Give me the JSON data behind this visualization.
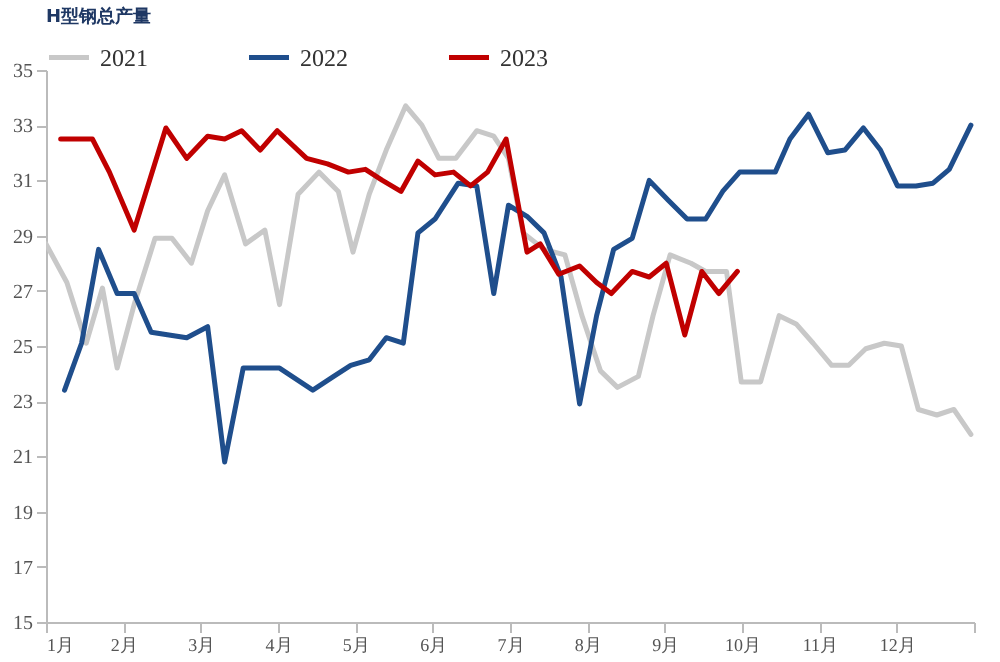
{
  "chart_data": {
    "type": "line",
    "title": "H型钢总产量",
    "xlim": [
      1,
      13
    ],
    "ylim": [
      15,
      35
    ],
    "xticks": [
      {
        "value": 1,
        "label": "1月"
      },
      {
        "value": 2,
        "label": "2月"
      },
      {
        "value": 3,
        "label": "3月"
      },
      {
        "value": 4,
        "label": "4月"
      },
      {
        "value": 5,
        "label": "5月"
      },
      {
        "value": 6,
        "label": "6月"
      },
      {
        "value": 7,
        "label": "7月"
      },
      {
        "value": 8,
        "label": "8月"
      },
      {
        "value": 9,
        "label": "9月"
      },
      {
        "value": 10,
        "label": "10月"
      },
      {
        "value": 11,
        "label": "11月"
      },
      {
        "value": 12,
        "label": "12月"
      },
      {
        "value": 13,
        "label": null
      }
    ],
    "yticks": [
      15,
      17,
      19,
      21,
      23,
      25,
      27,
      29,
      31,
      33,
      35
    ],
    "grid": false,
    "legend": "top",
    "marker": "none",
    "line_style": "solid",
    "series": [
      {
        "name": "2021",
        "color": "#c8c8c8",
        "x": [
          1.0,
          1.27,
          1.52,
          1.73,
          1.92,
          2.14,
          2.41,
          2.63,
          2.88,
          3.09,
          3.31,
          3.58,
          3.83,
          4.02,
          4.26,
          4.53,
          4.78,
          4.97,
          5.18,
          5.4,
          5.65,
          5.86,
          6.08,
          6.3,
          6.57,
          6.79,
          6.98,
          7.17,
          7.44,
          7.71,
          7.93,
          8.17,
          8.39,
          8.66,
          8.85,
          9.07,
          9.34,
          9.53,
          9.8,
          9.99,
          10.24,
          10.48,
          10.7,
          10.92,
          11.16,
          11.38,
          11.6,
          11.84,
          12.06,
          12.28,
          12.52,
          12.74,
          12.96
        ],
        "values": [
          28.7,
          27.3,
          25.1,
          27.1,
          24.2,
          26.5,
          28.9,
          28.9,
          28.0,
          29.9,
          31.2,
          28.7,
          29.2,
          26.5,
          30.5,
          31.3,
          30.6,
          28.4,
          30.5,
          32.1,
          33.7,
          33.0,
          31.8,
          31.8,
          32.8,
          32.6,
          31.8,
          29.1,
          28.5,
          28.3,
          26.1,
          24.1,
          23.5,
          23.9,
          26.1,
          28.3,
          28.0,
          27.7,
          27.7,
          23.7,
          23.7,
          26.1,
          25.8,
          25.1,
          24.3,
          24.3,
          24.9,
          25.1,
          25.0,
          22.7,
          22.5,
          22.7,
          21.8
        ]
      },
      {
        "name": "2022",
        "color": "#1f4e8c",
        "x": [
          1.24,
          1.46,
          1.68,
          1.92,
          2.14,
          2.36,
          2.82,
          3.09,
          3.31,
          3.55,
          3.83,
          4.02,
          4.45,
          4.72,
          4.94,
          5.18,
          5.4,
          5.62,
          5.81,
          6.03,
          6.33,
          6.57,
          6.79,
          6.98,
          7.22,
          7.44,
          7.66,
          7.9,
          8.12,
          8.34,
          8.58,
          8.8,
          9.04,
          9.29,
          9.53,
          9.75,
          9.97,
          10.43,
          10.62,
          10.86,
          11.11,
          11.33,
          11.57,
          11.79,
          12.01,
          12.25,
          12.47,
          12.68,
          12.96
        ],
        "values": [
          23.4,
          25.1,
          28.5,
          26.9,
          26.9,
          25.5,
          25.3,
          25.7,
          20.8,
          24.2,
          24.2,
          24.2,
          23.4,
          23.9,
          24.3,
          24.5,
          25.3,
          25.1,
          29.1,
          29.6,
          30.9,
          30.8,
          26.9,
          30.1,
          29.7,
          29.1,
          27.5,
          22.9,
          26.1,
          28.5,
          28.9,
          31.0,
          30.3,
          29.6,
          29.6,
          30.6,
          31.3,
          31.3,
          32.5,
          33.4,
          32.0,
          32.1,
          32.9,
          32.1,
          30.8,
          30.8,
          30.9,
          31.4,
          33.0
        ]
      },
      {
        "name": "2023",
        "color": "#c00000",
        "x": [
          1.19,
          1.6,
          1.82,
          2.14,
          2.55,
          2.82,
          3.09,
          3.31,
          3.53,
          3.77,
          3.99,
          4.37,
          4.64,
          4.91,
          5.13,
          5.35,
          5.59,
          5.81,
          6.03,
          6.27,
          6.49,
          6.71,
          6.95,
          7.22,
          7.39,
          7.63,
          7.9,
          8.12,
          8.31,
          8.58,
          8.8,
          9.02,
          9.26,
          9.48,
          9.7,
          9.94
        ],
        "values": [
          32.5,
          32.5,
          31.3,
          29.2,
          32.9,
          31.8,
          32.6,
          32.5,
          32.8,
          32.1,
          32.8,
          31.8,
          31.6,
          31.3,
          31.4,
          31.0,
          30.6,
          31.7,
          31.2,
          31.3,
          30.8,
          31.3,
          32.5,
          28.4,
          28.7,
          27.6,
          27.9,
          27.3,
          26.9,
          27.7,
          27.5,
          28.0,
          25.4,
          27.7,
          26.9,
          27.7
        ]
      }
    ]
  }
}
